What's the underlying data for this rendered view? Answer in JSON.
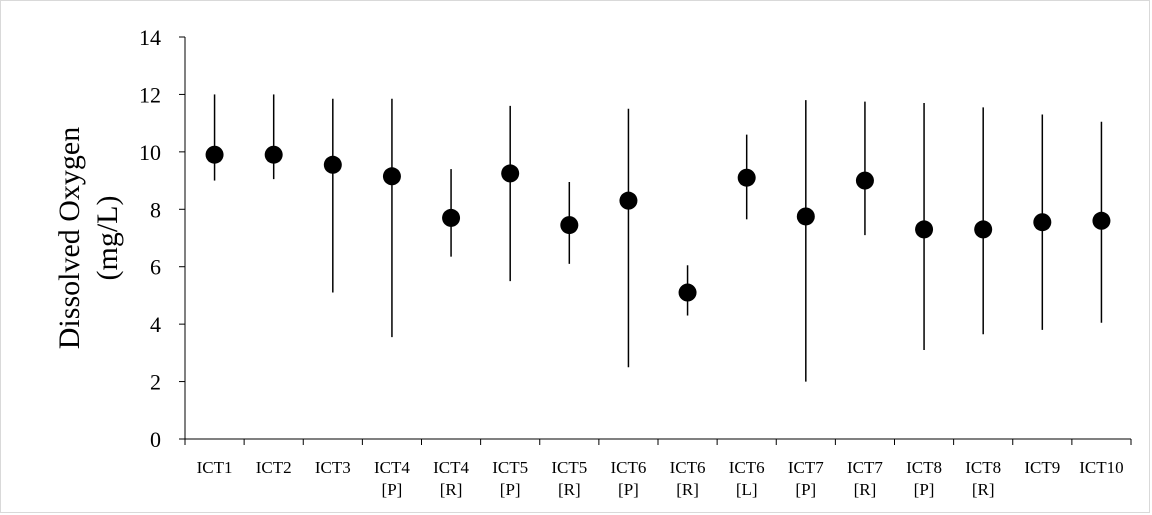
{
  "chart_data": {
    "type": "scatter",
    "title": "",
    "xlabel": "",
    "ylabel": [
      "Dissolved Oxygen",
      "(mg/L)"
    ],
    "ylim": [
      0,
      14
    ],
    "yticks": [
      0,
      2,
      4,
      6,
      8,
      10,
      12,
      14
    ],
    "grid": false,
    "legend": "none",
    "categories": [
      [
        "ICT1"
      ],
      [
        "ICT2"
      ],
      [
        "ICT3"
      ],
      [
        "ICT4",
        "[P]"
      ],
      [
        "ICT4",
        "[R]"
      ],
      [
        "ICT5",
        "[P]"
      ],
      [
        "ICT5",
        "[R]"
      ],
      [
        "ICT6",
        "[P]"
      ],
      [
        "ICT6",
        "[R]"
      ],
      [
        "ICT6",
        "[L]"
      ],
      [
        "ICT7",
        "[P]"
      ],
      [
        "ICT7",
        "[R]"
      ],
      [
        "ICT8",
        "[P]"
      ],
      [
        "ICT8",
        "[R]"
      ],
      [
        "ICT9"
      ],
      [
        "ICT10"
      ]
    ],
    "series": [
      {
        "values": [
          9.9,
          9.9,
          9.55,
          9.15,
          7.7,
          9.25,
          7.45,
          8.3,
          5.1,
          9.1,
          7.75,
          9.0,
          7.3,
          7.3,
          7.55,
          7.6
        ],
        "min": [
          9.0,
          9.05,
          5.1,
          3.55,
          6.35,
          5.5,
          6.1,
          2.5,
          4.3,
          7.65,
          2.0,
          7.1,
          3.1,
          3.65,
          3.8,
          4.05
        ],
        "max": [
          12.0,
          12.0,
          11.85,
          11.85,
          9.4,
          11.6,
          8.95,
          11.5,
          6.05,
          10.6,
          11.8,
          11.75,
          11.7,
          11.55,
          11.3,
          11.05
        ]
      }
    ],
    "colors": {
      "marker": "#000000",
      "axis": "#000000",
      "frame": "#d9d9d9"
    }
  }
}
